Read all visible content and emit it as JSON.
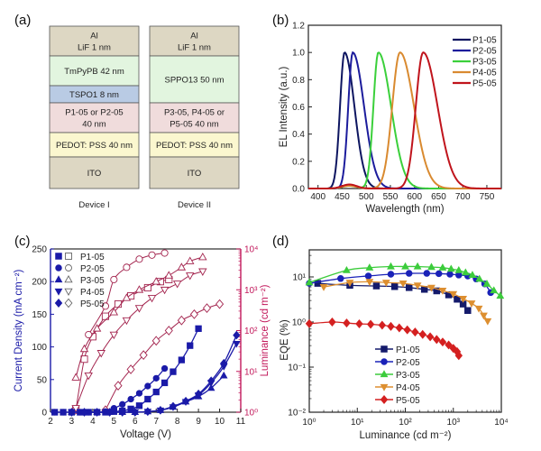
{
  "panels": {
    "a": {
      "label": "(a)",
      "devices": [
        {
          "name": "Device I",
          "layers": [
            {
              "lines": [
                "Al",
                "LiF 1 nm"
              ],
              "color": "#ddd7c3"
            },
            {
              "lines": [
                "TmPyPB 42 nm"
              ],
              "color": "#e2f5df"
            },
            {
              "lines": [
                "TSPO1 8 nm"
              ],
              "color": "#b9cbe4"
            },
            {
              "lines": [
                "P1-05 or P2-05",
                "40 nm"
              ],
              "color": "#f0dcdc"
            },
            {
              "lines": [
                "PEDOT: PSS 40 nm"
              ],
              "color": "#fbf7cf"
            },
            {
              "lines": [
                "ITO"
              ],
              "color": "#ddd7c3"
            }
          ]
        },
        {
          "name": "Device II",
          "layers": [
            {
              "lines": [
                "Al",
                "LiF 1 nm"
              ],
              "color": "#ddd7c3"
            },
            {
              "lines": [
                "SPPO13 50 nm"
              ],
              "color": "#e2f5df"
            },
            {
              "lines": [
                "P3-05, P4-05 or",
                "P5-05 40 nm"
              ],
              "color": "#f0dcdc"
            },
            {
              "lines": [
                "PEDOT: PSS 40 nm"
              ],
              "color": "#fbf7cf"
            },
            {
              "lines": [
                "ITO"
              ],
              "color": "#ddd7c3"
            }
          ]
        }
      ]
    },
    "b": {
      "label": "(b)"
    },
    "c": {
      "label": "(c)"
    },
    "d": {
      "label": "(d)"
    }
  },
  "chart_data": [
    {
      "id": "b",
      "type": "line",
      "title": "",
      "xlabel": "Wavelength (nm)",
      "ylabel": "EL Intensity (a.u.)",
      "xlim": [
        380,
        780
      ],
      "ylim": [
        0,
        1.2
      ],
      "xticks": [
        400,
        450,
        500,
        550,
        600,
        650,
        700,
        750
      ],
      "yticks": [
        "0.0",
        "0.2",
        "0.4",
        "0.6",
        "0.8",
        "1.0",
        "1.2"
      ],
      "legend_position": "top-right",
      "series": [
        {
          "name": "P1-05",
          "color": "#0d1560",
          "peak": 455,
          "fwhm_left": 22,
          "fwhm_right": 48,
          "shoulder": 0
        },
        {
          "name": "P2-05",
          "color": "#1c1c9c",
          "peak": 472,
          "fwhm_left": 22,
          "fwhm_right": 55,
          "shoulder": 0
        },
        {
          "name": "P3-05",
          "color": "#3bd03b",
          "peak": 525,
          "fwhm_left": 24,
          "fwhm_right": 62,
          "shoulder": 0.02
        },
        {
          "name": "P4-05",
          "color": "#d98a30",
          "peak": 570,
          "fwhm_left": 38,
          "fwhm_right": 68,
          "shoulder": 0.02
        },
        {
          "name": "P5-05",
          "color": "#c0141c",
          "peak": 618,
          "fwhm_left": 36,
          "fwhm_right": 70,
          "shoulder": 0.03
        }
      ]
    },
    {
      "id": "c",
      "type": "line",
      "xlabel": "Voltage (V)",
      "ylabel": "Current Density (mA cm⁻²)",
      "y2label": "Luminance (cd m⁻²)",
      "xlim": [
        2,
        11
      ],
      "ylim": [
        0,
        250
      ],
      "y2lim_log10": [
        0,
        4
      ],
      "xticks": [
        "2",
        "3",
        "4",
        "5",
        "6",
        "7",
        "8",
        "9",
        "10",
        "11"
      ],
      "yticks": [
        "0",
        "50",
        "100",
        "150",
        "200",
        "250"
      ],
      "y2ticks": [
        "10⁰",
        "10¹",
        "10²",
        "10³",
        "10⁴"
      ],
      "legend_position": "top-left",
      "legend": [
        {
          "name": "P1-05",
          "filled": "■",
          "open": "□"
        },
        {
          "name": "P2-05",
          "filled": "●",
          "open": "○"
        },
        {
          "name": "P3-05",
          "filled": "▲",
          "open": "△"
        },
        {
          "name": "P4-05",
          "filled": "▼",
          "open": "▽"
        },
        {
          "name": "P5-05",
          "filled": "◆",
          "open": "◇"
        }
      ],
      "current_color": "#1a1aa8",
      "luminance_color": "#c2185b",
      "current_density": [
        {
          "name": "P1-05",
          "marker": "square",
          "x": [
            2.2,
            2.6,
            3.0,
            3.4,
            3.8,
            4.2,
            4.6,
            5.0,
            5.4,
            5.8,
            6.2,
            6.6,
            7.0,
            7.4,
            7.8,
            8.2,
            8.6,
            9.0
          ],
          "y": [
            0,
            0,
            0,
            0,
            0,
            0,
            0,
            1,
            2,
            5,
            10,
            20,
            31,
            45,
            62,
            80,
            102,
            128
          ]
        },
        {
          "name": "P2-05",
          "marker": "circle",
          "x": [
            2.2,
            2.6,
            3.0,
            3.4,
            3.8,
            4.2,
            4.6,
            5.0,
            5.4,
            5.8,
            6.2,
            6.6,
            7.0,
            7.4
          ],
          "y": [
            0,
            0,
            0,
            0,
            0,
            0,
            1,
            6,
            12,
            20,
            29,
            40,
            52,
            67
          ]
        },
        {
          "name": "P3-05",
          "marker": "triangle-up",
          "x": [
            3.0,
            3.6,
            4.2,
            4.8,
            5.4,
            6.0,
            6.6,
            7.2,
            7.8,
            8.4,
            9.0,
            9.6,
            10.2
          ],
          "y": [
            0,
            0,
            0,
            0,
            0,
            0,
            1,
            3,
            8,
            16,
            24,
            37,
            56
          ]
        },
        {
          "name": "P4-05",
          "marker": "triangle-down",
          "x": [
            3.0,
            3.6,
            4.2,
            4.8,
            5.4,
            6.0,
            6.6,
            7.2,
            7.8,
            8.4,
            9.0,
            9.6,
            10.2,
            10.8
          ],
          "y": [
            0,
            0,
            0,
            0,
            0,
            0,
            1,
            3,
            8,
            16,
            26,
            45,
            70,
            105
          ]
        },
        {
          "name": "P5-05",
          "marker": "diamond",
          "x": [
            3.0,
            3.6,
            4.2,
            4.8,
            5.4,
            6.0,
            6.6,
            7.2,
            7.8,
            8.4,
            9.0,
            9.6,
            10.2,
            10.8
          ],
          "y": [
            0,
            0,
            0,
            0,
            0,
            0,
            1,
            3,
            9,
            17,
            28,
            48,
            75,
            118
          ]
        }
      ],
      "luminance_log10": [
        {
          "name": "P1-05",
          "marker": "square",
          "x": [
            3.2,
            3.6,
            4.0,
            4.6,
            5.2,
            5.8,
            6.6,
            7.2,
            7.6
          ],
          "y": [
            0.05,
            1.3,
            1.85,
            2.35,
            2.65,
            2.85,
            3.05,
            3.2,
            3.25
          ]
        },
        {
          "name": "P2-05",
          "marker": "circle",
          "x": [
            3.8,
            4.6,
            5.0,
            5.6,
            6.2,
            6.8,
            7.4
          ],
          "y": [
            1.9,
            2.6,
            3.25,
            3.55,
            3.75,
            3.85,
            3.9
          ]
        },
        {
          "name": "P3-05",
          "marker": "triangle-up",
          "x": [
            3.2,
            3.6,
            4.2,
            5.0,
            5.6,
            6.2,
            7.0,
            7.6,
            8.2,
            8.6,
            9.2
          ],
          "y": [
            0.85,
            1.55,
            2.05,
            2.45,
            2.8,
            3.0,
            3.2,
            3.35,
            3.55,
            3.7,
            3.8
          ]
        },
        {
          "name": "P4-05",
          "marker": "triangle-down",
          "x": [
            3.2,
            3.8,
            4.4,
            5.0,
            5.6,
            6.2,
            6.8,
            7.4,
            8.0,
            8.6,
            9.2
          ],
          "y": [
            0.1,
            0.9,
            1.45,
            1.9,
            2.25,
            2.55,
            2.8,
            3.0,
            3.15,
            3.35,
            3.45
          ]
        },
        {
          "name": "P5-05",
          "marker": "diamond",
          "x": [
            4.6,
            5.2,
            5.8,
            6.4,
            7.0,
            7.6,
            8.2,
            8.8,
            9.4,
            10.0
          ],
          "y": [
            0.05,
            0.65,
            1.05,
            1.4,
            1.75,
            2.0,
            2.25,
            2.4,
            2.55,
            2.65
          ]
        }
      ]
    },
    {
      "id": "d",
      "type": "line",
      "xlabel": "Luminance (cd m⁻²)",
      "ylabel": "EQE (%)",
      "xscale": "log",
      "yscale": "log",
      "xlim_log10": [
        0,
        4
      ],
      "ylim_log10": [
        -2,
        1.6
      ],
      "xticks": [
        "10⁰",
        "10¹",
        "10²",
        "10³",
        "10⁴"
      ],
      "yticks": [
        "10⁻²",
        "10⁻¹",
        "10⁰",
        "10¹"
      ],
      "legend_position": "bottom-center",
      "series": [
        {
          "name": "P1-05",
          "color": "#141a6b",
          "marker": "square",
          "lum": [
            1.5,
            7,
            25,
            60,
            120,
            250,
            450,
            800,
            1200,
            1600,
            2000
          ],
          "eqe": [
            7.2,
            6.5,
            6.3,
            6.1,
            5.8,
            5.3,
            4.9,
            4.0,
            3.2,
            2.5,
            1.8
          ]
        },
        {
          "name": "P2-05",
          "color": "#1a22b8",
          "marker": "circle",
          "lum": [
            1,
            4.5,
            17,
            50,
            120,
            280,
            500,
            850,
            1300,
            2000,
            3000,
            4500,
            6000
          ],
          "eqe": [
            7.2,
            9.2,
            10.5,
            11.5,
            12.0,
            12.0,
            11.8,
            11.5,
            11.0,
            10.5,
            9.0,
            7.0,
            4.5
          ]
        },
        {
          "name": "P3-05",
          "color": "#3ccc3c",
          "marker": "triangle-up",
          "lum": [
            1,
            6,
            18,
            50,
            100,
            180,
            350,
            600,
            900,
            1300,
            1800,
            2500,
            3500,
            5000,
            7000,
            9500
          ],
          "eqe": [
            7.5,
            14,
            16,
            17,
            17,
            17,
            16.5,
            16,
            15,
            14,
            12.5,
            11,
            9,
            7,
            5,
            3.8
          ]
        },
        {
          "name": "P4-05",
          "color": "#dd8f30",
          "marker": "triangle-down",
          "lum": [
            2,
            7,
            18,
            40,
            90,
            180,
            350,
            600,
            1000,
            1600,
            2400,
            3400,
            4300,
            5200
          ],
          "eqe": [
            6.0,
            7.5,
            7.8,
            7.5,
            7.2,
            6.5,
            5.8,
            5.0,
            4.2,
            3.3,
            2.6,
            2.0,
            1.4,
            1.05
          ]
        },
        {
          "name": "P5-05",
          "color": "#d42020",
          "marker": "diamond",
          "lum": [
            1,
            3,
            6,
            11,
            19,
            33,
            50,
            75,
            110,
            160,
            230,
            330,
            450,
            600,
            800,
            1000,
            1200,
            1300
          ],
          "eqe": [
            0.92,
            1.0,
            0.95,
            0.91,
            0.89,
            0.85,
            0.8,
            0.74,
            0.67,
            0.6,
            0.53,
            0.47,
            0.41,
            0.36,
            0.31,
            0.26,
            0.22,
            0.18
          ]
        }
      ]
    }
  ]
}
